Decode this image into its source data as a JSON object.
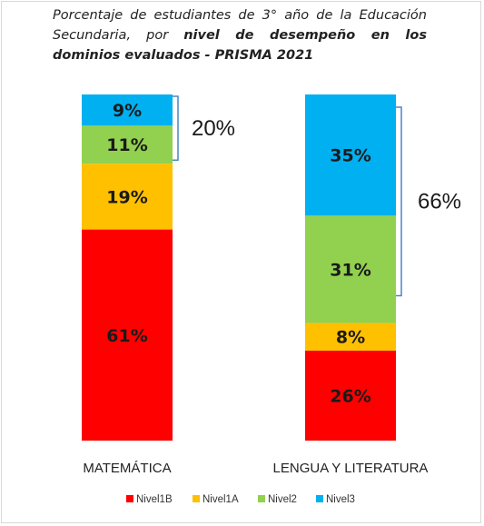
{
  "title": {
    "part1": "Porcentaje de estudiantes de 3° año de la Educación Secundaria, por ",
    "bold": "nivel de desempeño en los dominios evaluados - PRISMA 2021",
    "full": "Porcentaje de estudiantes de 3° año de la Educación Secundaria, por nivel de desempeño en los dominios evaluados - PRISMA 2021"
  },
  "chart_data": {
    "type": "bar",
    "stacked": true,
    "percent": true,
    "title": "Porcentaje de estudiantes de 3° año de la Educación Secundaria, por nivel de desempeño en los dominios evaluados - PRISMA 2021",
    "categories": [
      "MATEMÁTICA",
      "LENGUA Y LITERATURA"
    ],
    "series": [
      {
        "name": "Nivel1B",
        "color": "#ff0000",
        "values": [
          61,
          26
        ],
        "labels": [
          "61%",
          "26%"
        ]
      },
      {
        "name": "Nivel1A",
        "color": "#ffc000",
        "values": [
          19,
          8
        ],
        "labels": [
          "19%",
          "8%"
        ]
      },
      {
        "name": "Nivel2",
        "color": "#92d050",
        "values": [
          11,
          31
        ],
        "labels": [
          "11%",
          "31%"
        ]
      },
      {
        "name": "Nivel3",
        "color": "#00b0f0",
        "values": [
          9,
          35
        ],
        "labels": [
          "9%",
          "35%"
        ]
      }
    ],
    "brackets": [
      {
        "category": "MATEMÁTICA",
        "spans": [
          "Nivel2",
          "Nivel3"
        ],
        "value": 20,
        "label": "20%"
      },
      {
        "category": "LENGUA Y LITERATURA",
        "spans": [
          "Nivel2",
          "Nivel3"
        ],
        "value": 66,
        "label": "66%"
      }
    ],
    "legend_position": "bottom",
    "grid": false
  }
}
